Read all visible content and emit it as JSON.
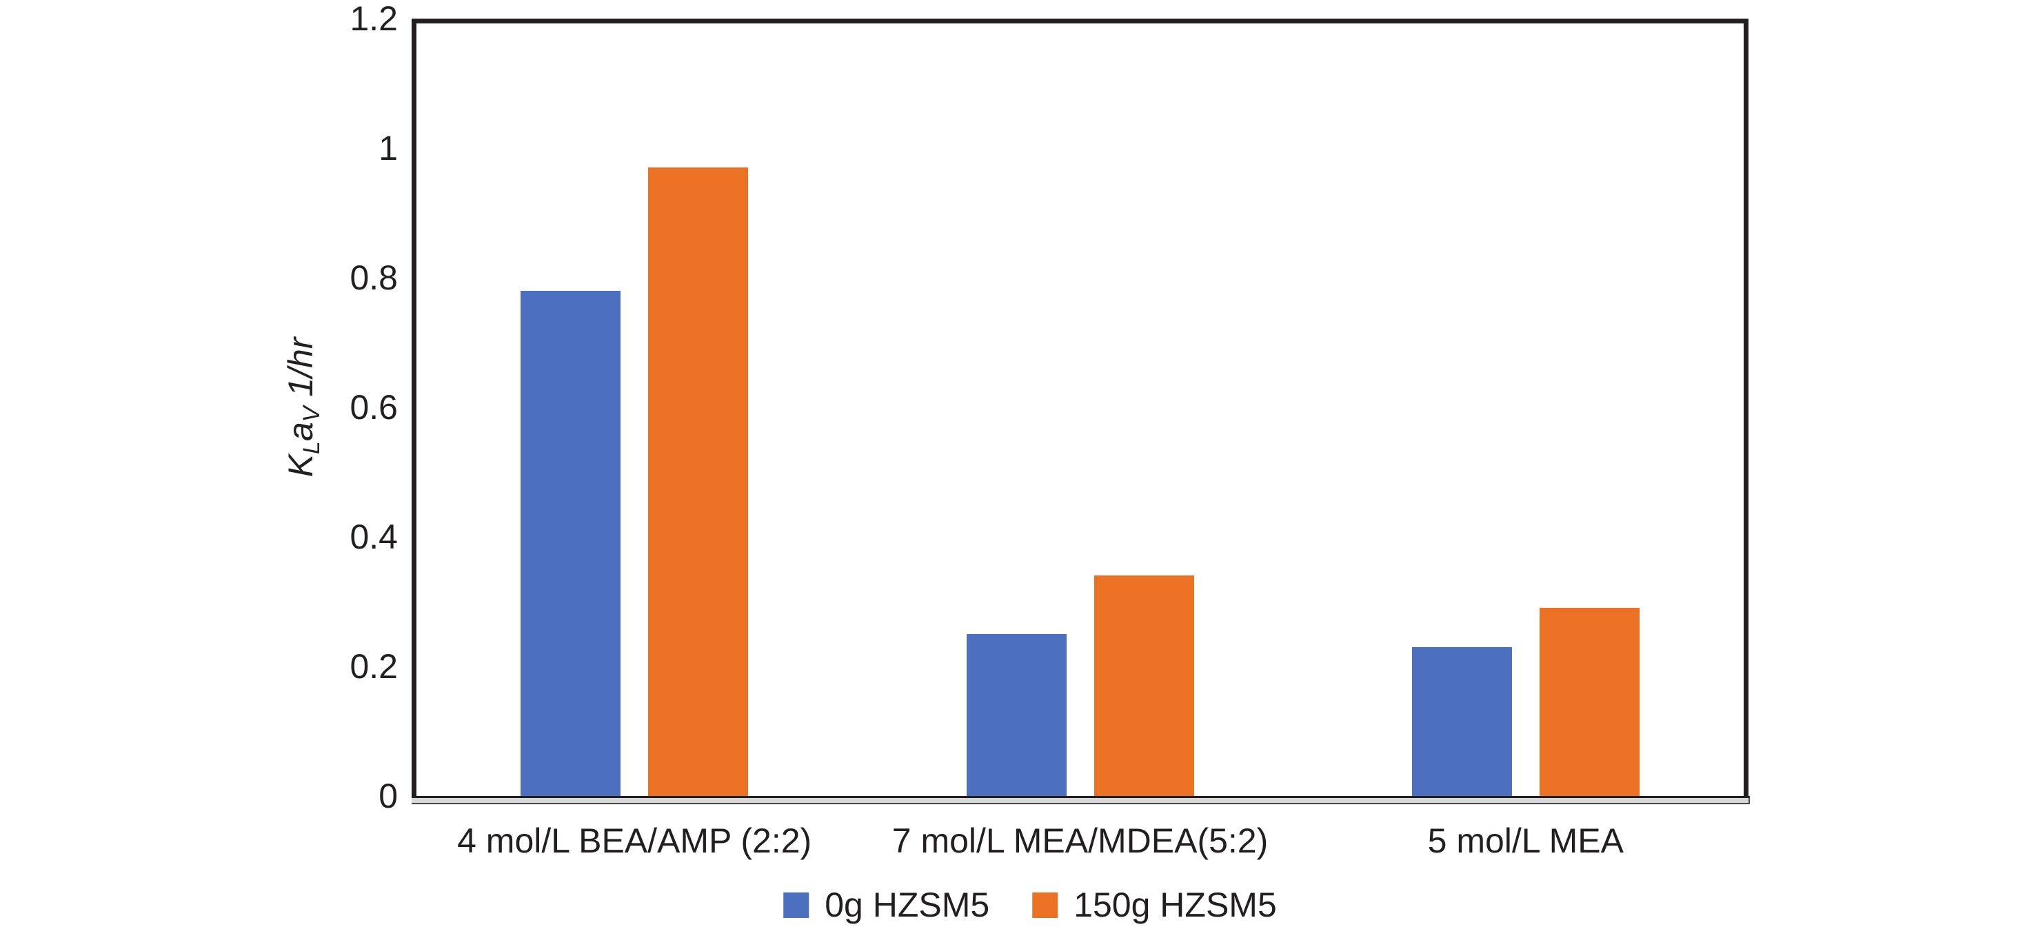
{
  "chart_data": {
    "type": "bar",
    "title": "",
    "categories": [
      "4 mol/L BEA/AMP (2:2)",
      "7 mol/L MEA/MDEA(5:2)",
      "5 mol/L MEA"
    ],
    "series": [
      {
        "name": "0g HZSM5",
        "color": "#4C6FBF",
        "values": [
          0.78,
          0.25,
          0.23
        ]
      },
      {
        "name": "150g HZSM5",
        "color": "#EB7124",
        "values": [
          0.97,
          0.34,
          0.29
        ]
      }
    ],
    "ylabel": "KLaV 1/hr",
    "ylabel_parts": [
      {
        "text": "K",
        "sub": false
      },
      {
        "text": "L",
        "sub": true
      },
      {
        "text": "a",
        "sub": false
      },
      {
        "text": "V",
        "sub": true
      },
      {
        "text": " 1/hr",
        "sub": false
      }
    ],
    "xlabel": "",
    "ylim": [
      0,
      1.2
    ],
    "yticks": [
      0,
      0.2,
      0.4,
      0.6,
      0.8,
      1,
      1.2
    ],
    "ytick_labels": [
      "0",
      "0.2",
      "0.4",
      "0.6",
      "0.8",
      "1",
      "1.2"
    ],
    "grid": false,
    "legend_position": "bottom",
    "frame_color": "#231f20",
    "axis_strip_color": "#d9d9d9"
  }
}
